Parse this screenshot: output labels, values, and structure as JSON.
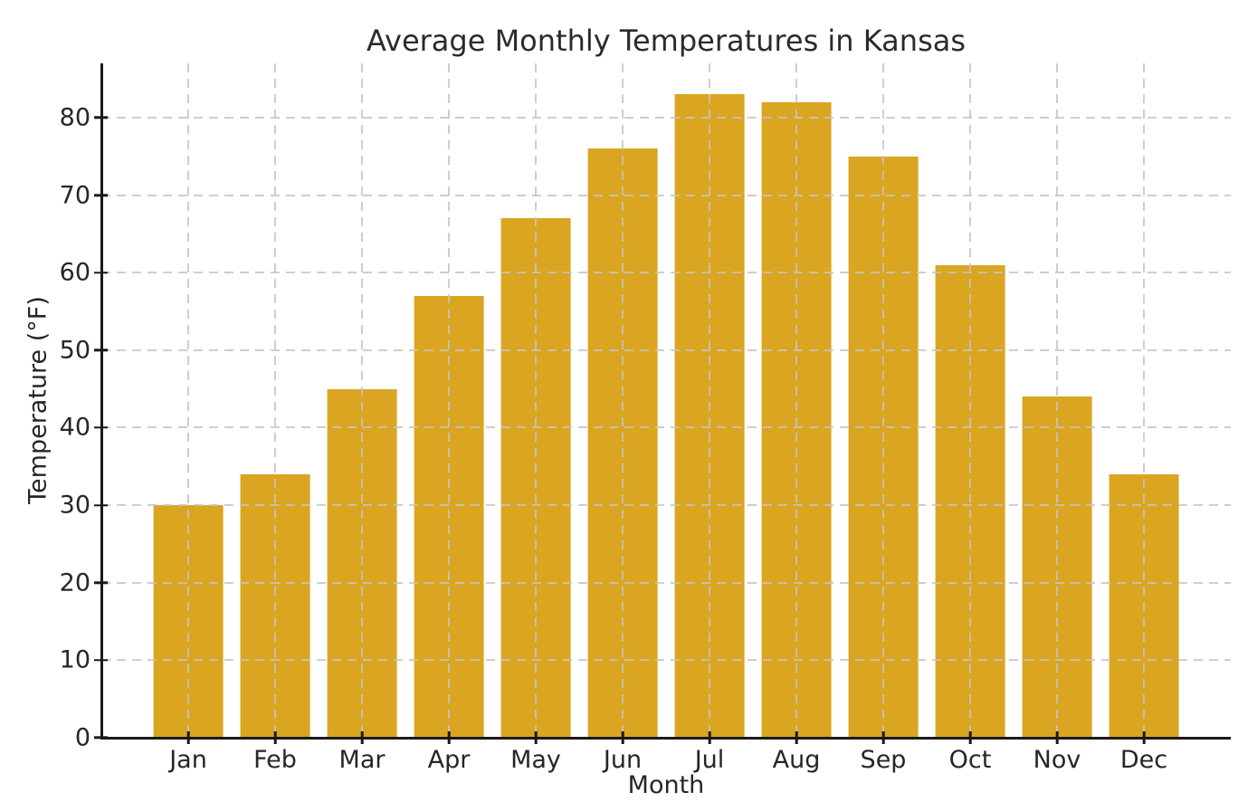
{
  "chart_data": {
    "type": "bar",
    "title": "Average Monthly Temperatures in Kansas",
    "xlabel": "Month",
    "ylabel": "Temperature (°F)",
    "categories": [
      "Jan",
      "Feb",
      "Mar",
      "Apr",
      "May",
      "Jun",
      "Jul",
      "Aug",
      "Sep",
      "Oct",
      "Nov",
      "Dec"
    ],
    "values": [
      30,
      34,
      45,
      57,
      67,
      76,
      83,
      82,
      75,
      61,
      44,
      34
    ],
    "ylim": [
      0,
      87
    ],
    "yticks": [
      0,
      10,
      20,
      30,
      40,
      50,
      60,
      70,
      80
    ],
    "bar_color": "#DAA520",
    "bar_width_fraction": 0.8,
    "grid": "dashed, both axes, drawn above bars",
    "grid_color": "#c5c5c5",
    "axis_color": "#1a1a1a",
    "text_color": "#262626",
    "legend": "none",
    "spines": "left and bottom only"
  }
}
